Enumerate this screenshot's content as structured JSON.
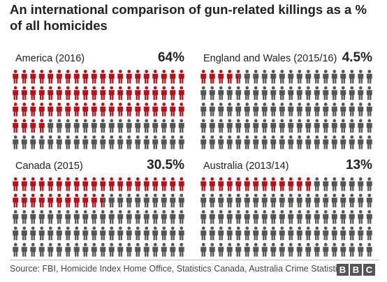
{
  "title": "An international comparison of gun-related killings as a % of all homicides",
  "colors": {
    "gun": "#b0141d",
    "other": "#555555"
  },
  "chart_data": [
    {
      "type": "pictogram",
      "label": "America (2016)",
      "value_label": "64%",
      "value": 64,
      "total_icons": 100
    },
    {
      "type": "pictogram",
      "label": "England and Wales (2015/16)",
      "value_label": "4.5%",
      "value": 4.5,
      "total_icons": 100
    },
    {
      "type": "pictogram",
      "label": "Canada (2015)",
      "value_label": "30.5%",
      "value": 30.5,
      "total_icons": 100
    },
    {
      "type": "pictogram",
      "label": "Australia (2013/14)",
      "value_label": "13%",
      "value": 13,
      "total_icons": 100
    }
  ],
  "footer": {
    "source": "Source: FBI, Homicide Index Home Office, Statistics Canada, Australia Crime Statistics",
    "brand": [
      "B",
      "B",
      "C"
    ]
  }
}
